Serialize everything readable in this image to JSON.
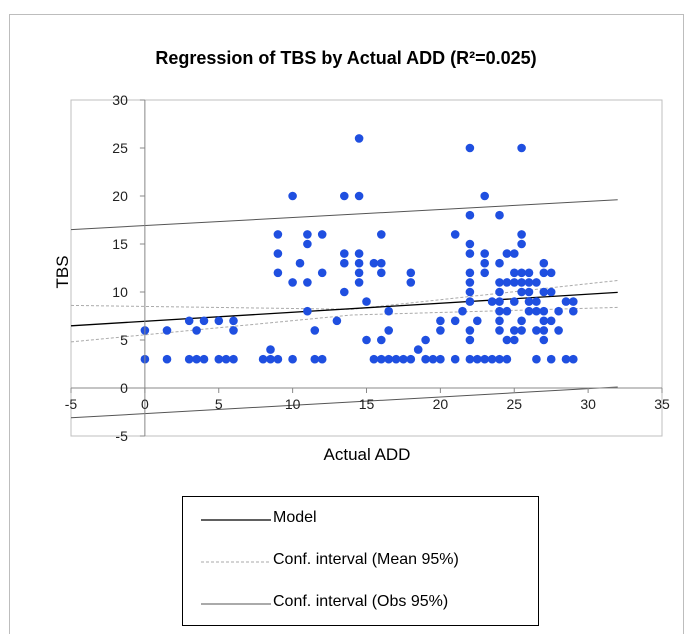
{
  "chart_data": {
    "type": "scatter",
    "title": "Regression of TBS by Actual ADD (R²=0.025)",
    "xlabel": "Actual ADD",
    "ylabel": "TBS",
    "xlim": [
      -5,
      35
    ],
    "ylim": [
      -5,
      30
    ],
    "xticks": [
      -5,
      0,
      5,
      10,
      15,
      20,
      25,
      30,
      35
    ],
    "yticks": [
      -5,
      0,
      5,
      10,
      15,
      20,
      25,
      30
    ],
    "grid": false,
    "legend_position": "bottom",
    "marker_color": "#1F4FE0",
    "model": {
      "name": "Model",
      "intercept": 6.95,
      "slope": 0.094,
      "color": "#000000"
    },
    "conf_mean": {
      "name": "Conf. interval (Mean 95%)",
      "color": "#aaaaaa",
      "upper": [
        [
          -5,
          8.6
        ],
        [
          14,
          8.2
        ],
        [
          32,
          11.2
        ]
      ],
      "lower": [
        [
          -5,
          4.8
        ],
        [
          14,
          7.6
        ],
        [
          32,
          8.4
        ]
      ]
    },
    "conf_obs": {
      "name": "Conf. interval (Obs 95%)",
      "color": "#555555",
      "upper": [
        [
          -5,
          16.5
        ],
        [
          32,
          19.6
        ]
      ],
      "lower": [
        [
          -5,
          -3.1
        ],
        [
          32,
          0.1
        ]
      ]
    },
    "points": [
      [
        0,
        3
      ],
      [
        0,
        6
      ],
      [
        1.5,
        3
      ],
      [
        1.5,
        6
      ],
      [
        3,
        3
      ],
      [
        3,
        7
      ],
      [
        3.5,
        3
      ],
      [
        3.5,
        6
      ],
      [
        4,
        3
      ],
      [
        4,
        7
      ],
      [
        5,
        3
      ],
      [
        5,
        7
      ],
      [
        5.5,
        3
      ],
      [
        6,
        3
      ],
      [
        6,
        6
      ],
      [
        6,
        7
      ],
      [
        8,
        3
      ],
      [
        8.5,
        3
      ],
      [
        8.5,
        4
      ],
      [
        9,
        3
      ],
      [
        9,
        12
      ],
      [
        9,
        14
      ],
      [
        9,
        16
      ],
      [
        10,
        3
      ],
      [
        10,
        11
      ],
      [
        10,
        20
      ],
      [
        10.5,
        13
      ],
      [
        11,
        8
      ],
      [
        11,
        11
      ],
      [
        11,
        15
      ],
      [
        11,
        16
      ],
      [
        11.5,
        3
      ],
      [
        11.5,
        6
      ],
      [
        12,
        3
      ],
      [
        12,
        12
      ],
      [
        12,
        16
      ],
      [
        13,
        7
      ],
      [
        13.5,
        10
      ],
      [
        13.5,
        13
      ],
      [
        13.5,
        14
      ],
      [
        13.5,
        20
      ],
      [
        14.5,
        11
      ],
      [
        14.5,
        12
      ],
      [
        14.5,
        13
      ],
      [
        14.5,
        14
      ],
      [
        14.5,
        20
      ],
      [
        14.5,
        26
      ],
      [
        15,
        5
      ],
      [
        15,
        9
      ],
      [
        15.5,
        3
      ],
      [
        15.5,
        13
      ],
      [
        16,
        3
      ],
      [
        16,
        5
      ],
      [
        16,
        12
      ],
      [
        16,
        13
      ],
      [
        16,
        16
      ],
      [
        16.5,
        3
      ],
      [
        16.5,
        6
      ],
      [
        16.5,
        8
      ],
      [
        17,
        3
      ],
      [
        17.5,
        3
      ],
      [
        18,
        3
      ],
      [
        18,
        11
      ],
      [
        18,
        12
      ],
      [
        18.5,
        4
      ],
      [
        19,
        5
      ],
      [
        19,
        3
      ],
      [
        19.5,
        3
      ],
      [
        20,
        6
      ],
      [
        20,
        7
      ],
      [
        20,
        3
      ],
      [
        21,
        7
      ],
      [
        21,
        3
      ],
      [
        21,
        16
      ],
      [
        21.5,
        8
      ],
      [
        22,
        3
      ],
      [
        22,
        5
      ],
      [
        22,
        6
      ],
      [
        22,
        9
      ],
      [
        22,
        10
      ],
      [
        22,
        11
      ],
      [
        22,
        12
      ],
      [
        22,
        14
      ],
      [
        22,
        15
      ],
      [
        22,
        18
      ],
      [
        22,
        25
      ],
      [
        22.5,
        3
      ],
      [
        22.5,
        7
      ],
      [
        23,
        3
      ],
      [
        23,
        12
      ],
      [
        23,
        13
      ],
      [
        23,
        14
      ],
      [
        23,
        20
      ],
      [
        23.5,
        3
      ],
      [
        23.5,
        9
      ],
      [
        24,
        3
      ],
      [
        24,
        6
      ],
      [
        24,
        7
      ],
      [
        24,
        8
      ],
      [
        24,
        9
      ],
      [
        24,
        10
      ],
      [
        24,
        11
      ],
      [
        24,
        13
      ],
      [
        24,
        18
      ],
      [
        24.5,
        3
      ],
      [
        24.5,
        5
      ],
      [
        24.5,
        8
      ],
      [
        24.5,
        11
      ],
      [
        24.5,
        14
      ],
      [
        25,
        5
      ],
      [
        25,
        6
      ],
      [
        25,
        9
      ],
      [
        25,
        11
      ],
      [
        25,
        12
      ],
      [
        25,
        14
      ],
      [
        25.5,
        6
      ],
      [
        25.5,
        7
      ],
      [
        25.5,
        10
      ],
      [
        25.5,
        11
      ],
      [
        25.5,
        12
      ],
      [
        25.5,
        15
      ],
      [
        25.5,
        16
      ],
      [
        25.5,
        25
      ],
      [
        26,
        8
      ],
      [
        26,
        9
      ],
      [
        26,
        10
      ],
      [
        26,
        11
      ],
      [
        26,
        12
      ],
      [
        26.5,
        3
      ],
      [
        26.5,
        6
      ],
      [
        26.5,
        8
      ],
      [
        26.5,
        9
      ],
      [
        26.5,
        11
      ],
      [
        27,
        5
      ],
      [
        27,
        6
      ],
      [
        27,
        7
      ],
      [
        27,
        8
      ],
      [
        27,
        10
      ],
      [
        27,
        12
      ],
      [
        27,
        13
      ],
      [
        27.5,
        3
      ],
      [
        27.5,
        7
      ],
      [
        27.5,
        10
      ],
      [
        27.5,
        12
      ],
      [
        28,
        6
      ],
      [
        28,
        8
      ],
      [
        28.5,
        3
      ],
      [
        28.5,
        9
      ],
      [
        29,
        3
      ],
      [
        29,
        8
      ],
      [
        29,
        9
      ]
    ]
  }
}
